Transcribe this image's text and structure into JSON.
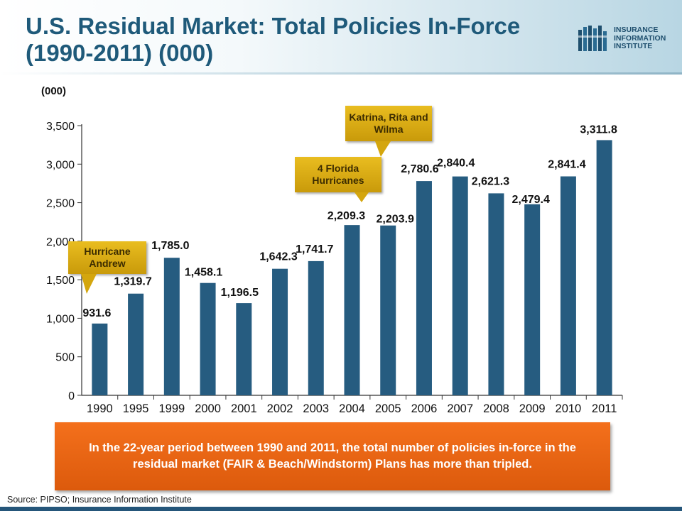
{
  "slide": {
    "title": "U.S. Residual Market: Total Policies In-Force (1990-2011) (000)",
    "unit_label": "(000)",
    "logo_lines": [
      "INSURANCE",
      "INFORMATION",
      "INSTITUTE"
    ],
    "note": "In the 22-year period between 1990 and 2011, the total number of policies in-force in the residual market (FAIR & Beach/Windstorm) Plans has more than tripled.",
    "source": "Source: PIPSO; Insurance Information Institute"
  },
  "callouts": {
    "andrew": "Hurricane Andrew",
    "florida": "4 Florida Hurricanes",
    "katrina": "Katrina, Rita and Wilma"
  },
  "colors": {
    "bar": "#265C80",
    "title": "#1F5A7A",
    "callout": "#D4A60E",
    "note": "#E8630F"
  },
  "chart_data": {
    "type": "bar",
    "categories": [
      "1990",
      "1995",
      "1999",
      "2000",
      "2001",
      "2002",
      "2003",
      "2004",
      "2005",
      "2006",
      "2007",
      "2008",
      "2009",
      "2010",
      "2011"
    ],
    "values": [
      931.6,
      1319.7,
      1785.0,
      1458.1,
      1196.5,
      1642.3,
      1741.7,
      2209.3,
      2203.9,
      2780.6,
      2840.4,
      2621.3,
      2479.4,
      2841.4,
      3311.8
    ],
    "data_labels": [
      "931.6",
      "1,319.7",
      "1,785.0",
      "1,458.1",
      "1,196.5",
      "1,642.3",
      "1,741.7",
      "2,209.3",
      "2,203.9",
      "2,780.6",
      "2,840.4",
      "2,621.3",
      "2,479.4",
      "2,841.4",
      "3,311.8"
    ],
    "yticks": [
      "0",
      "500",
      "1,000",
      "1,500",
      "2,000",
      "2,500",
      "3,000",
      "3,500"
    ],
    "ylim": [
      0,
      3500
    ],
    "ylabel": "(000)",
    "grid": false
  }
}
